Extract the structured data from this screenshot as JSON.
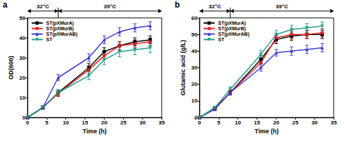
{
  "chart_data": [
    {
      "type": "line",
      "title": "a",
      "x_label": "Time (h)",
      "y_label": "OD(600)",
      "x": [
        0,
        4,
        8,
        16,
        20,
        24,
        28,
        32
      ],
      "xlim": [
        0,
        35
      ],
      "xticks": [
        0,
        5,
        10,
        15,
        20,
        25,
        30,
        35
      ],
      "ylim": [
        0,
        50
      ],
      "yticks": [
        0,
        10,
        20,
        30,
        40,
        50
      ],
      "legend": "upper left",
      "annotations": [
        {
          "text": "32°C",
          "x": [
            0,
            8
          ]
        },
        {
          "text": "39°C",
          "x": [
            8,
            35
          ]
        }
      ],
      "series": [
        {
          "name": "ST(pXMurA)",
          "color": "#000000",
          "marker": "square",
          "values": [
            0,
            5,
            12.5,
            25,
            33,
            36,
            38,
            39
          ],
          "errors": [
            0.3,
            0.8,
            1.5,
            2,
            2,
            2,
            2,
            2
          ]
        },
        {
          "name": "ST(pXMurB)",
          "color": "#e8191c",
          "marker": "circle",
          "values": [
            0,
            5,
            12,
            24,
            31,
            36,
            37,
            38
          ],
          "errors": [
            0.3,
            0.8,
            1.5,
            2,
            2,
            2,
            2,
            2
          ]
        },
        {
          "name": "ST(pXMurAB)",
          "color": "#3a3acf",
          "marker": "triangle",
          "values": [
            0,
            5,
            20,
            30,
            39,
            43,
            45,
            46
          ],
          "errors": [
            0.3,
            0.8,
            1.5,
            2,
            2,
            2,
            2,
            2
          ]
        },
        {
          "name": "ST",
          "color": "#1f9e8c",
          "marker": "triangle-down",
          "values": [
            0,
            5,
            12.5,
            21,
            29,
            33,
            34,
            35
          ],
          "errors": [
            0.3,
            0.8,
            1.5,
            2,
            2.5,
            2.5,
            2.5,
            2.5
          ]
        }
      ]
    },
    {
      "type": "line",
      "title": "b",
      "x_label": "Time (h)",
      "y_label": "Glutamic acid (g/L)",
      "x": [
        0,
        4,
        8,
        16,
        20,
        24,
        28,
        32
      ],
      "xlim": [
        0,
        35
      ],
      "xticks": [
        0,
        5,
        10,
        15,
        20,
        25,
        30,
        35
      ],
      "ylim": [
        0,
        60
      ],
      "yticks": [
        0,
        10,
        20,
        30,
        40,
        50,
        60
      ],
      "legend": "upper left",
      "annotations": [
        {
          "text": "32°C",
          "x": [
            0,
            8
          ]
        },
        {
          "text": "39°C",
          "x": [
            8,
            35
          ]
        }
      ],
      "series": [
        {
          "name": "ST(pXMurA)",
          "color": "#000000",
          "marker": "square",
          "values": [
            0,
            5.5,
            15,
            35,
            47,
            49,
            50,
            50
          ],
          "errors": [
            0.3,
            0.8,
            1.5,
            2.5,
            2.5,
            2.5,
            2.5,
            2.5
          ]
        },
        {
          "name": "ST(pXMurB)",
          "color": "#e8191c",
          "marker": "circle",
          "values": [
            0,
            5.5,
            15,
            33,
            48,
            50,
            50,
            51
          ],
          "errors": [
            0.3,
            0.8,
            1.5,
            2.5,
            2.5,
            2.5,
            2.5,
            2.5
          ]
        },
        {
          "name": "ST(pXMurAB)",
          "color": "#3a3acf",
          "marker": "triangle",
          "values": [
            0,
            5,
            15,
            30,
            39,
            40,
            41,
            42
          ],
          "errors": [
            0.3,
            0.8,
            1.5,
            2,
            2,
            2.5,
            2.5,
            2.5
          ]
        },
        {
          "name": "ST",
          "color": "#1f9e8c",
          "marker": "triangle-down",
          "values": [
            0,
            6,
            17,
            38,
            50,
            53,
            54,
            55
          ],
          "errors": [
            0.3,
            0.8,
            1.5,
            2.5,
            2.5,
            2.5,
            2.5,
            2.5
          ]
        }
      ]
    }
  ]
}
